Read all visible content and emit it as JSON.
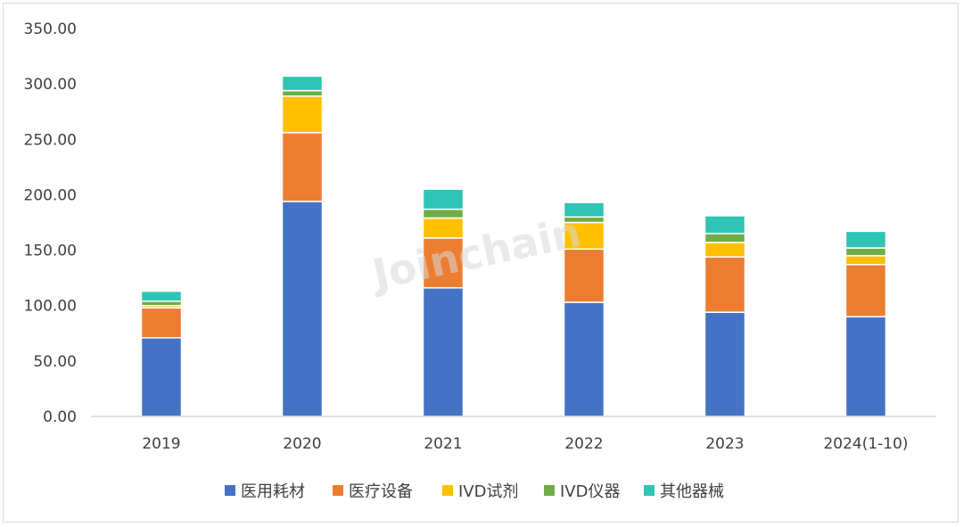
{
  "watermark": "Joinchain",
  "chart_data": {
    "type": "bar",
    "stacked": true,
    "categories": [
      "2019",
      "2020",
      "2021",
      "2022",
      "2023",
      "2024(1-10)"
    ],
    "ylim": [
      0,
      350
    ],
    "yticks": [
      "0.00",
      "50.00",
      "100.00",
      "150.00",
      "200.00",
      "250.00",
      "300.00",
      "350.00"
    ],
    "grid": false,
    "legend_position": "bottom",
    "series": [
      {
        "name": "医用耗材",
        "color": "#4472C4",
        "values": [
          71,
          194,
          116,
          103,
          94,
          90
        ]
      },
      {
        "name": "医疗设备",
        "color": "#ED7D31",
        "values": [
          27,
          62,
          45,
          48,
          50,
          47
        ]
      },
      {
        "name": "IVD试剂",
        "color": "#FFC000",
        "values": [
          2,
          33,
          18,
          24,
          13,
          8
        ]
      },
      {
        "name": "IVD仪器",
        "color": "#70AD47",
        "values": [
          4,
          5,
          8,
          5,
          8,
          7
        ]
      },
      {
        "name": "其他器械",
        "color": "#2EC4B6",
        "values": [
          9,
          13,
          18,
          13,
          16,
          15
        ]
      }
    ]
  }
}
